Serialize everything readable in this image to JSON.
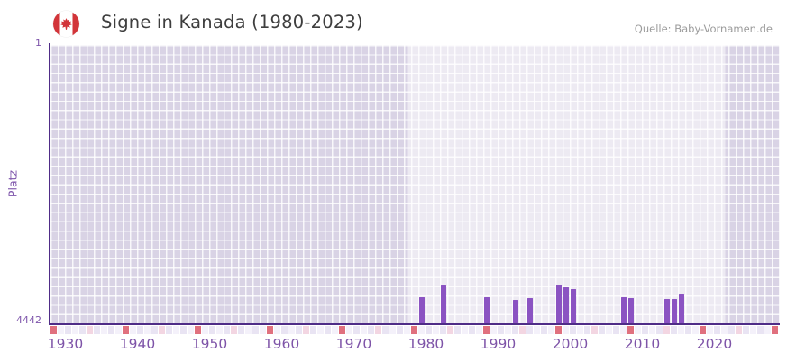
{
  "header": {
    "title": "Signe in Kanada (1980-2023)",
    "source": "Quelle: Baby-Vornamen.de",
    "flag_icon": "canada-flag-icon"
  },
  "chart_data": {
    "type": "bar",
    "title": "Signe in Kanada (1980-2023)",
    "xlabel": "",
    "ylabel": "Platz",
    "y_axis": {
      "tick_labels": [
        "1",
        "4442"
      ],
      "min": 1,
      "max": 4442,
      "inverted": true
    },
    "x_axis": {
      "start_year": 1928,
      "end_year": 2029,
      "tick_years": [
        1930,
        1940,
        1950,
        1960,
        1970,
        1980,
        1990,
        2000,
        2010,
        2020
      ]
    },
    "series": [
      {
        "name": "Platz",
        "points": [
          {
            "year": 1980,
            "rank": 4025
          },
          {
            "year": 1983,
            "rank": 3838
          },
          {
            "year": 1989,
            "rank": 4025
          },
          {
            "year": 1993,
            "rank": 4068
          },
          {
            "year": 1995,
            "rank": 4040
          },
          {
            "year": 1999,
            "rank": 3824
          },
          {
            "year": 2000,
            "rank": 3867
          },
          {
            "year": 2001,
            "rank": 3896
          },
          {
            "year": 2008,
            "rank": 4025
          },
          {
            "year": 2009,
            "rank": 4040
          },
          {
            "year": 2014,
            "rank": 4054
          },
          {
            "year": 2015,
            "rank": 4054
          },
          {
            "year": 2016,
            "rank": 3982
          }
        ]
      }
    ],
    "highlight_band": {
      "from_year": 1978,
      "to_year": 2022
    },
    "grid": true,
    "legend_position": "none",
    "timeline_strip": {
      "decade_marker_interval": 10,
      "half_decade_marker_interval": 5
    },
    "colors": {
      "bar": "#8b53c2",
      "axis_line": "#4f2c87",
      "tick_text": "#7e55ab",
      "plot_bg_outer": "#d9d3e5",
      "band_overlay": "rgba(255,255,255,0.52)",
      "grid_line": "rgba(255,255,255,0.82)",
      "strip_red": "#e0707e",
      "strip_pink": "#f3d6e2",
      "strip_base_even": "#e9e4f3",
      "strip_base_odd": "#f4f1fa",
      "flag_red": "#d23439",
      "title_text": "#3e3e3e",
      "source_text": "#9b9b9b"
    }
  }
}
